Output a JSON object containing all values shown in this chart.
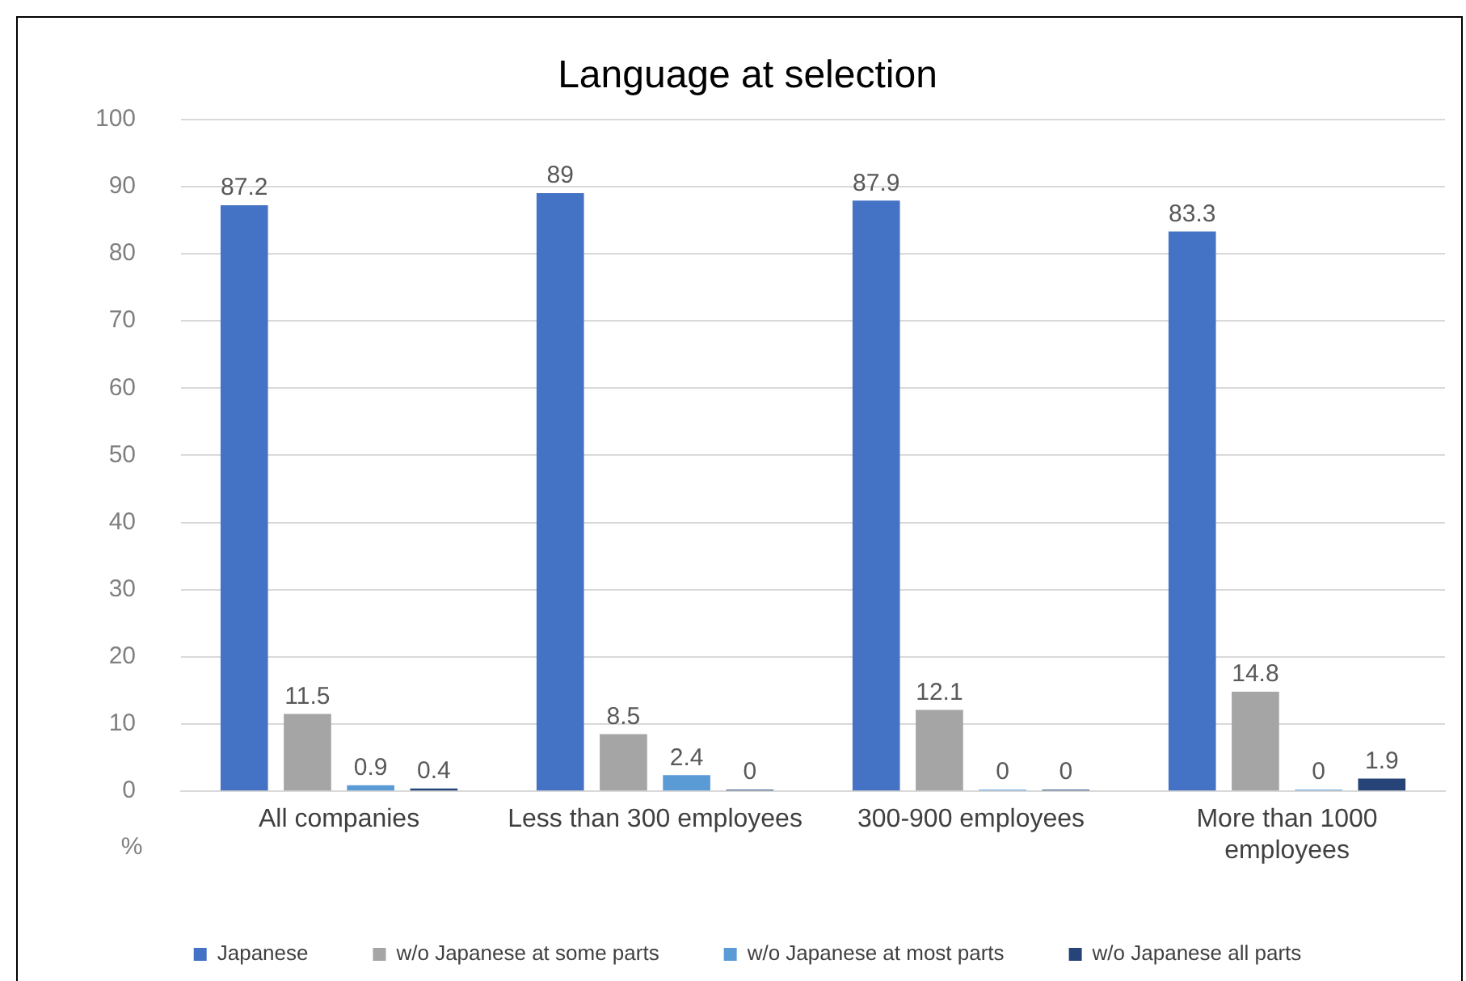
{
  "chart_data": {
    "type": "bar",
    "title": "Language at selection",
    "ylabel": "%",
    "categories": [
      "All companies",
      "Less than 300 employees",
      "300-900 employees",
      "More than 1000 employees"
    ],
    "series": [
      {
        "name": "Japanese",
        "color": "#4472c4",
        "values": [
          87.2,
          89,
          87.9,
          83.3
        ]
      },
      {
        "name": "w/o Japanese at some parts",
        "color": "#a5a5a5",
        "values": [
          11.5,
          8.5,
          12.1,
          14.8
        ]
      },
      {
        "name": "w/o Japanese at most parts",
        "color": "#5b9bd5",
        "values": [
          0.9,
          2.4,
          0,
          0
        ]
      },
      {
        "name": "w/o Japanese all parts",
        "color": "#264478",
        "values": [
          0.4,
          0,
          0,
          1.9
        ]
      }
    ],
    "ylim": [
      0,
      100
    ],
    "yticks": [
      0,
      10,
      20,
      30,
      40,
      50,
      60,
      70,
      80,
      90,
      100
    ],
    "grid": "y",
    "legend": "bottom",
    "data_labels": true
  }
}
